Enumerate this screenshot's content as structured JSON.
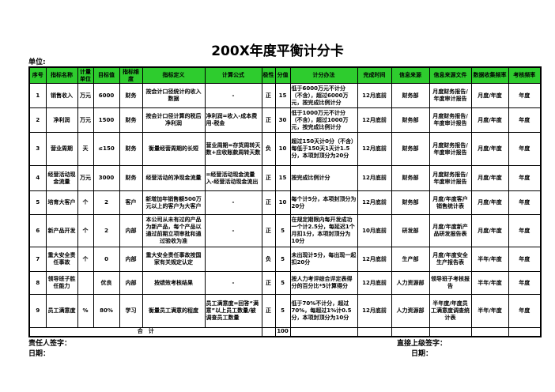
{
  "title": "200X年度平衡计分卡",
  "unit_label": "单位:",
  "colors": {
    "header_bg": "#2ecc2e"
  },
  "headers": [
    "序号",
    "指标名称",
    "计量单位",
    "目标值",
    "指标维度",
    "指标定义",
    "计算公式",
    "极性",
    "分值",
    "计分办法",
    "完成时间",
    "信息来源",
    "信息来源文件",
    "数据收集频率",
    "考核频率"
  ],
  "rows": [
    [
      "1",
      "销售收入",
      "万元",
      "6000",
      "财务",
      "按会计口径统计的收入数据",
      "-",
      "正",
      "15",
      "低于6000万元不计分（不含），超过6000万元，按完成比例计分",
      "12月底前",
      "财务部",
      "月度财务报告/年度审计报告",
      "月度/年度",
      "年度"
    ],
    [
      "2",
      "净利润",
      "万元",
      "1500",
      "财务",
      "按会计口径计算的税后净利润",
      "净利润=收入-成本费用-税金",
      "正",
      "30",
      "低于1000万元不计分（不含），超过1000万元，按完成比例计分",
      "12月底前",
      "财务部",
      "月度财务报告/年度审计报告",
      "月度/年度",
      "年度"
    ],
    [
      "3",
      "营业周期",
      "天",
      "≤150",
      "财务",
      "衡量经营周期的长短",
      "营业周期=存货周转天数+应收账款周转天数",
      "负",
      "10",
      "超过150天计0分（不含）每低于150天1天计1.5分，本项封顶分为20分",
      "12月底前",
      "财务部",
      "月度财务报告/年度审计报告",
      "月度/年度",
      "年度"
    ],
    [
      "4",
      "经营活动现金流量",
      "万元",
      "3000",
      "财务",
      "经营活动的净现金流量",
      "=经营活动现金流量入-经营活动现金流出",
      "正",
      "15",
      "按完成比例计分",
      "12月底前",
      "财务部",
      "月度财务报告/年度审计报告",
      "月度/年度",
      "年度"
    ],
    [
      "5",
      "培育大客户",
      "个",
      "2",
      "客户",
      "新增加年销售额500万元以上的客户为大客户",
      "-",
      "正",
      "10",
      "每个计5分，本项封顶分为20分",
      "12月底前",
      "财务部",
      "月度/年度客户销售统计表",
      "月度/年度",
      "年度"
    ],
    [
      "6",
      "新产品开发",
      "个",
      "2",
      "内部",
      "本公司从未有过的产品为新产品，每个产品以通过前期立项审批和通过验收为准",
      "-",
      "正",
      "5",
      "在规定期限内每开发成功一个计2.5分，每延迟1个月扣1分，本项封顶分为10分",
      "10月底前",
      "研发部",
      "月度/年度新产品研发报告表",
      "月度/年度",
      "年度"
    ],
    [
      "7",
      "重大安全责任事故",
      "个",
      "0",
      "内部",
      "重大安全责任事故按国家有关规定认定",
      "",
      "负",
      "5",
      "未出现计5分，每出现一起扣20分",
      "12月底前",
      "生产部",
      "月度/年度安全生产报告表",
      "半年/年度",
      "年度"
    ],
    [
      "8",
      "领导班子胜任能力",
      "",
      "优良",
      "内部",
      "按绩效考核结果",
      "-",
      "正",
      "5",
      "按人力考评综合评定表得分的百分比*5计算得分",
      "12月底前",
      "人力资源部",
      "领导班子考核报告",
      "半年/年度",
      "年度"
    ],
    [
      "9",
      "员工满意度",
      "%",
      "80%",
      "学习",
      "衡量员工满意的程度",
      "员工满意度=回答“满意”以上员工数量/被调查员工数量",
      "正",
      "5",
      "低于70%不计分，超过70%，每超过1%计0.5分，本项封顶分为10分",
      "12月底前",
      "人力资源部",
      "半年度/年度员工满意度调查统计表",
      "半年/年度",
      "年度"
    ]
  ],
  "total": {
    "label": "合　计",
    "score": "100"
  },
  "footer": {
    "responsible_sign": "责任人签字：",
    "date_left": "日期：",
    "supervisor_sign": "直接上级签字：",
    "date_right": "日期："
  }
}
